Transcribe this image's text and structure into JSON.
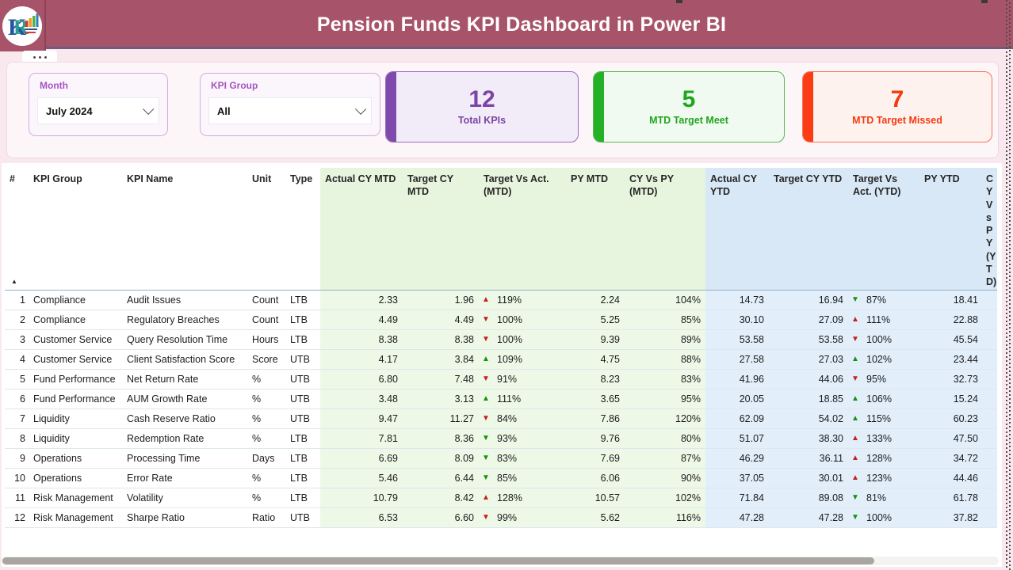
{
  "header": {
    "title": "Pension Funds KPI Dashboard in Power BI"
  },
  "filters": {
    "month": {
      "label": "Month",
      "value": "July 2024"
    },
    "kpi_group": {
      "label": "KPI Group",
      "value": "All"
    }
  },
  "cards": [
    {
      "value": "12",
      "label": "Total KPIs",
      "accent": "#7e4aab"
    },
    {
      "value": "5",
      "label": "MTD Target Meet",
      "accent": "#25b125"
    },
    {
      "value": "7",
      "label": "MTD Target Missed",
      "accent": "#fb3c14"
    }
  ],
  "icons": {
    "up": "▲",
    "down": "▼",
    "sort_asc": "▲",
    "chevron": "⌄"
  },
  "colors": {
    "banner": "#a7546b",
    "arrow_red": "#c8201d",
    "arrow_green": "#13940b",
    "mtd_section_bg": "#eef8e7",
    "ytd_section_bg": "#e2eefa"
  },
  "table": {
    "columns": [
      "#",
      "KPI Group",
      "KPI Name",
      "Unit",
      "Type",
      "Actual CY MTD",
      "Target CY MTD",
      "Target Vs Act. (MTD)",
      "PY MTD",
      "CY Vs PY (MTD)",
      "Actual CY YTD",
      "Target CY YTD",
      "Target Vs Act. (YTD)",
      "PY YTD",
      "CY Vs PY (YTD)"
    ],
    "rows": [
      {
        "num": "1",
        "group": "Compliance",
        "name": "Audit Issues",
        "unit": "Count",
        "type": "LTB",
        "actual_mtd": "2.33",
        "target_mtd": "1.96",
        "tva_mtd": {
          "dir": "up",
          "color": "red",
          "value": "119%"
        },
        "py_mtd": "2.24",
        "cy_vs_py_mtd": "104%",
        "actual_ytd": "14.73",
        "target_ytd": "16.94",
        "tva_ytd": {
          "dir": "down",
          "color": "green",
          "value": "87%"
        },
        "py_ytd": "18.41"
      },
      {
        "num": "2",
        "group": "Compliance",
        "name": "Regulatory Breaches",
        "unit": "Count",
        "type": "LTB",
        "actual_mtd": "4.49",
        "target_mtd": "4.49",
        "tva_mtd": {
          "dir": "down",
          "color": "red",
          "value": "100%"
        },
        "py_mtd": "5.25",
        "cy_vs_py_mtd": "85%",
        "actual_ytd": "30.10",
        "target_ytd": "27.09",
        "tva_ytd": {
          "dir": "up",
          "color": "red",
          "value": "111%"
        },
        "py_ytd": "22.88"
      },
      {
        "num": "3",
        "group": "Customer Service",
        "name": "Query Resolution Time",
        "unit": "Hours",
        "type": "LTB",
        "actual_mtd": "8.38",
        "target_mtd": "8.38",
        "tva_mtd": {
          "dir": "down",
          "color": "red",
          "value": "100%"
        },
        "py_mtd": "9.39",
        "cy_vs_py_mtd": "89%",
        "actual_ytd": "53.58",
        "target_ytd": "53.58",
        "tva_ytd": {
          "dir": "down",
          "color": "red",
          "value": "100%"
        },
        "py_ytd": "45.54"
      },
      {
        "num": "4",
        "group": "Customer Service",
        "name": "Client Satisfaction Score",
        "unit": "Score",
        "type": "UTB",
        "actual_mtd": "4.17",
        "target_mtd": "3.84",
        "tva_mtd": {
          "dir": "up",
          "color": "green",
          "value": "109%"
        },
        "py_mtd": "4.75",
        "cy_vs_py_mtd": "88%",
        "actual_ytd": "27.58",
        "target_ytd": "27.03",
        "tva_ytd": {
          "dir": "up",
          "color": "green",
          "value": "102%"
        },
        "py_ytd": "23.44"
      },
      {
        "num": "5",
        "group": "Fund Performance",
        "name": "Net Return Rate",
        "unit": "%",
        "type": "UTB",
        "actual_mtd": "6.80",
        "target_mtd": "7.48",
        "tva_mtd": {
          "dir": "down",
          "color": "red",
          "value": "91%"
        },
        "py_mtd": "8.23",
        "cy_vs_py_mtd": "83%",
        "actual_ytd": "41.96",
        "target_ytd": "44.06",
        "tva_ytd": {
          "dir": "down",
          "color": "red",
          "value": "95%"
        },
        "py_ytd": "32.73"
      },
      {
        "num": "6",
        "group": "Fund Performance",
        "name": "AUM Growth Rate",
        "unit": "%",
        "type": "UTB",
        "actual_mtd": "3.48",
        "target_mtd": "3.13",
        "tva_mtd": {
          "dir": "up",
          "color": "green",
          "value": "111%"
        },
        "py_mtd": "3.65",
        "cy_vs_py_mtd": "95%",
        "actual_ytd": "20.05",
        "target_ytd": "18.85",
        "tva_ytd": {
          "dir": "up",
          "color": "green",
          "value": "106%"
        },
        "py_ytd": "15.24"
      },
      {
        "num": "7",
        "group": "Liquidity",
        "name": "Cash Reserve Ratio",
        "unit": "%",
        "type": "UTB",
        "actual_mtd": "9.47",
        "target_mtd": "11.27",
        "tva_mtd": {
          "dir": "down",
          "color": "red",
          "value": "84%"
        },
        "py_mtd": "7.86",
        "cy_vs_py_mtd": "120%",
        "actual_ytd": "62.09",
        "target_ytd": "54.02",
        "tva_ytd": {
          "dir": "up",
          "color": "green",
          "value": "115%"
        },
        "py_ytd": "60.23"
      },
      {
        "num": "8",
        "group": "Liquidity",
        "name": "Redemption Rate",
        "unit": "%",
        "type": "LTB",
        "actual_mtd": "7.81",
        "target_mtd": "8.36",
        "tva_mtd": {
          "dir": "down",
          "color": "green",
          "value": "93%"
        },
        "py_mtd": "9.76",
        "cy_vs_py_mtd": "80%",
        "actual_ytd": "51.07",
        "target_ytd": "38.30",
        "tva_ytd": {
          "dir": "up",
          "color": "red",
          "value": "133%"
        },
        "py_ytd": "47.50"
      },
      {
        "num": "9",
        "group": "Operations",
        "name": "Processing Time",
        "unit": "Days",
        "type": "LTB",
        "actual_mtd": "6.69",
        "target_mtd": "8.09",
        "tva_mtd": {
          "dir": "down",
          "color": "green",
          "value": "83%"
        },
        "py_mtd": "7.69",
        "cy_vs_py_mtd": "87%",
        "actual_ytd": "46.29",
        "target_ytd": "36.11",
        "tva_ytd": {
          "dir": "up",
          "color": "red",
          "value": "128%"
        },
        "py_ytd": "34.72"
      },
      {
        "num": "10",
        "group": "Operations",
        "name": "Error Rate",
        "unit": "%",
        "type": "LTB",
        "actual_mtd": "5.46",
        "target_mtd": "6.44",
        "tva_mtd": {
          "dir": "down",
          "color": "green",
          "value": "85%"
        },
        "py_mtd": "6.06",
        "cy_vs_py_mtd": "90%",
        "actual_ytd": "37.05",
        "target_ytd": "30.01",
        "tva_ytd": {
          "dir": "up",
          "color": "red",
          "value": "123%"
        },
        "py_ytd": "44.46"
      },
      {
        "num": "11",
        "group": "Risk Management",
        "name": "Volatility",
        "unit": "%",
        "type": "LTB",
        "actual_mtd": "10.79",
        "target_mtd": "8.42",
        "tva_mtd": {
          "dir": "up",
          "color": "red",
          "value": "128%"
        },
        "py_mtd": "10.57",
        "cy_vs_py_mtd": "102%",
        "actual_ytd": "71.84",
        "target_ytd": "89.08",
        "tva_ytd": {
          "dir": "down",
          "color": "green",
          "value": "81%"
        },
        "py_ytd": "61.78"
      },
      {
        "num": "12",
        "group": "Risk Management",
        "name": "Sharpe Ratio",
        "unit": "Ratio",
        "type": "UTB",
        "actual_mtd": "6.53",
        "target_mtd": "6.60",
        "tva_mtd": {
          "dir": "down",
          "color": "red",
          "value": "99%"
        },
        "py_mtd": "5.62",
        "cy_vs_py_mtd": "116%",
        "actual_ytd": "47.28",
        "target_ytd": "47.28",
        "tva_ytd": {
          "dir": "down",
          "color": "green",
          "value": "100%"
        },
        "py_ytd": "37.82"
      }
    ]
  }
}
